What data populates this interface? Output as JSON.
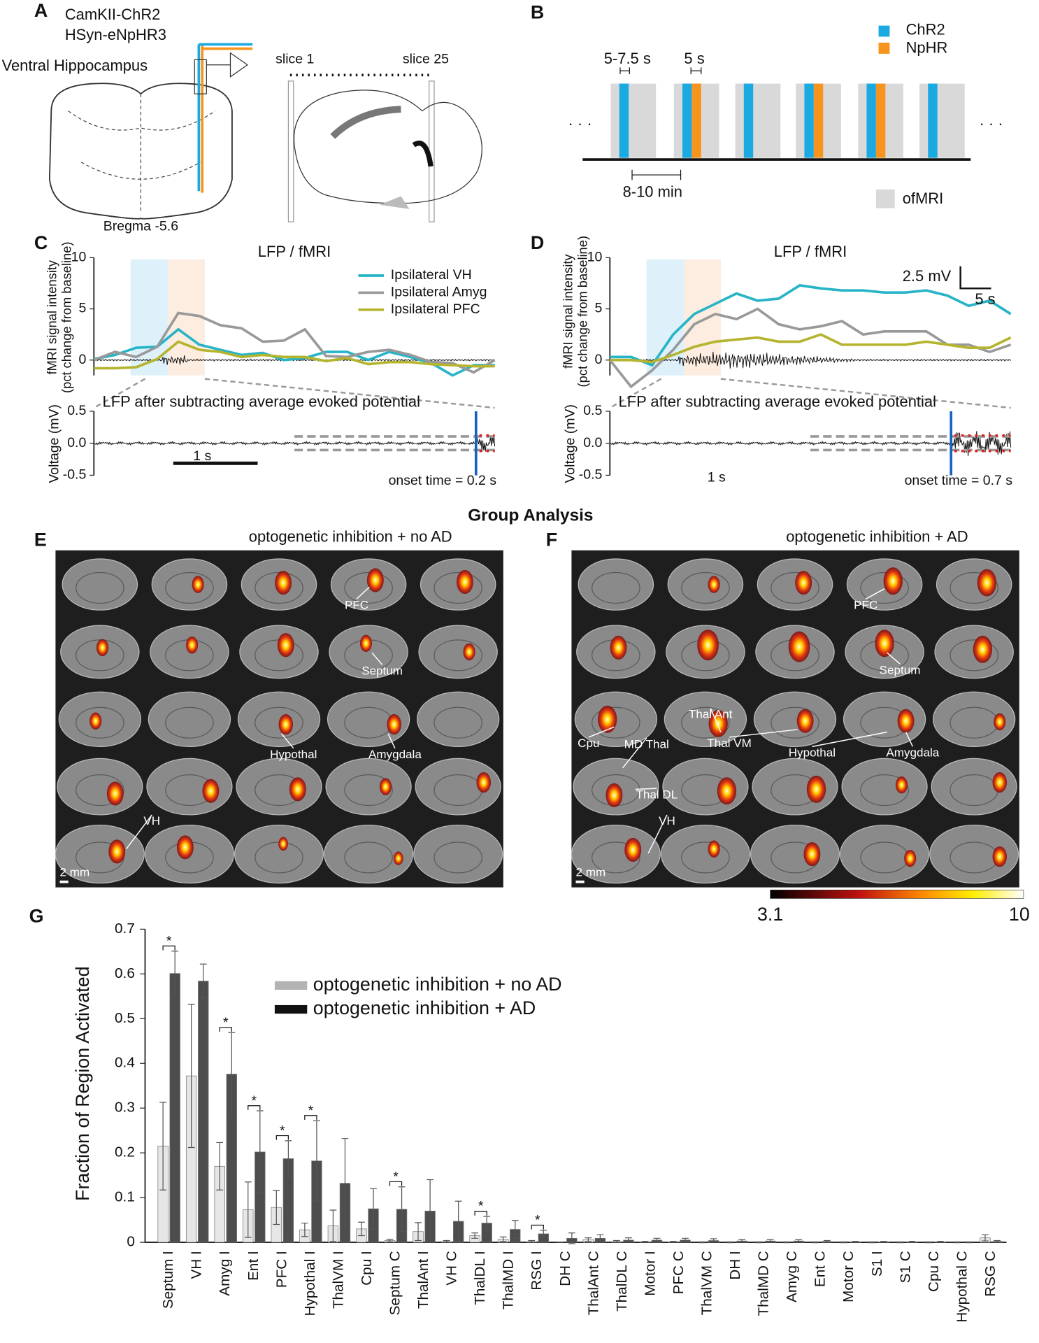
{
  "panel_a": {
    "label": "A",
    "lines": [
      "CamKII-ChR2",
      "HSyn-eNpHR3"
    ],
    "region": "Ventral Hippocampus",
    "bregma": "Bregma -5.6",
    "slice_start": "slice 1",
    "slice_end": "slice 25"
  },
  "panel_b": {
    "label": "B",
    "legend": [
      {
        "name": "ChR2",
        "color": "#1aa9e1"
      },
      {
        "name": "NpHR",
        "color": "#f7941d"
      },
      {
        "name": "ofMRI",
        "color": "#d9d9d9"
      }
    ],
    "stim_duration": "5-7.5 s",
    "inhib_duration": "5 s",
    "interval": "8-10 min",
    "ellipsis": "· · ·"
  },
  "group_title": "Group Analysis",
  "panel_e": {
    "label": "E",
    "title": "optogenetic inhibition + no AD",
    "annotations": [
      "PFC",
      "Septum",
      "Hypothal",
      "Amygdala",
      "VH"
    ],
    "scale": "2 mm"
  },
  "panel_f": {
    "label": "F",
    "title": "optogenetic inhibition + AD",
    "annotations": [
      "PFC",
      "Septum",
      "Thal Ant",
      "Cpu",
      "MD Thal",
      "Thal VM",
      "Hypothal",
      "Amygdala",
      "Thal DL",
      "VH"
    ],
    "scale": "2 mm"
  },
  "colorbar": {
    "min": 3.1,
    "max": 10
  },
  "chart_data": [
    {
      "type": "line",
      "panel": "C",
      "title": "LFP / fMRI",
      "y_label": [
        "fMRI signal intensity",
        "(pct change from baseline)"
      ],
      "ylim": [
        -1.5,
        10
      ],
      "yticks": [
        0,
        5,
        10
      ],
      "series": [
        {
          "name": "Ipsilateral VH",
          "color": "#27b4c6",
          "values": [
            0.1,
            0.5,
            1.2,
            1.3,
            3,
            1.5,
            1,
            0.5,
            0.7,
            0,
            0.2,
            0.8,
            0.8,
            0,
            0.8,
            0.3,
            -0.3,
            -1.5,
            -0.5,
            -0.5
          ]
        },
        {
          "name": "Ipsilateral Amyg",
          "color": "#999999",
          "values": [
            0,
            0.8,
            0.3,
            1.3,
            4.6,
            4.3,
            3.4,
            3.1,
            1.8,
            1.9,
            3,
            0.4,
            0.3,
            0.8,
            1,
            0.5,
            -0.2,
            -0.3,
            -1.2,
            0
          ]
        },
        {
          "name": "Ipsilateral PFC",
          "color": "#b5b42f",
          "values": [
            -0.8,
            -0.8,
            -0.7,
            0.1,
            1.8,
            1,
            0.8,
            0.3,
            0.5,
            0.3,
            0.3,
            -0.1,
            0.2,
            -0.4,
            -0.2,
            -0.2,
            -0.4,
            -0.5,
            -0.6,
            -0.6
          ]
        }
      ],
      "lfp": {
        "title": "LFP after subtracting average evoked potential",
        "y_label": "Voltage (mV)",
        "ylim": [
          -0.5,
          0.5
        ],
        "yticks": [
          -0.5,
          {
            "value": 0,
            "label": "0.0"
          },
          0.5
        ],
        "scale_bar": "1 s",
        "onset": "onset time = 0.2 s"
      }
    },
    {
      "type": "line",
      "panel": "D",
      "title": "LFP / fMRI",
      "y_label": [
        "fMRI signal intensity",
        "(pct change from baseline)"
      ],
      "ylim": [
        -1.5,
        10
      ],
      "yticks": [
        0,
        5,
        10
      ],
      "scale_bar_v": "2.5 mV",
      "scale_bar_h": "5 s",
      "series": [
        {
          "name": "Ipsilateral VH",
          "color": "#27b4c6",
          "values": [
            0.3,
            0.3,
            -0.5,
            2.5,
            4.5,
            5.5,
            6.5,
            5.8,
            6,
            7.3,
            7,
            6.8,
            6.8,
            6.6,
            6.6,
            6.8,
            6.3,
            5.3,
            5.8,
            4.5
          ]
        },
        {
          "name": "Ipsilateral Amyg",
          "color": "#999999",
          "values": [
            0,
            -2.6,
            -1,
            1,
            3.5,
            4.5,
            4,
            5,
            3.5,
            3,
            3.3,
            3.8,
            2.5,
            2.8,
            2.8,
            2.8,
            1.5,
            1.5,
            0.8,
            1.5
          ]
        },
        {
          "name": "Ipsilateral PFC",
          "color": "#b5b42f",
          "values": [
            0,
            0,
            -0.2,
            0.5,
            1.3,
            1.8,
            2,
            2.2,
            1.8,
            1.8,
            2.5,
            1.5,
            1.5,
            1.5,
            1.5,
            1.8,
            1.5,
            1.2,
            1.2,
            2.2
          ]
        }
      ],
      "lfp": {
        "title": "LFP after subtracting average evoked potential",
        "y_label": "Voltage (mV)",
        "ylim": [
          -0.5,
          0.5
        ],
        "yticks": [
          -0.5,
          {
            "value": 0,
            "label": "0.0"
          },
          0.5
        ],
        "scale_bar": "1 s",
        "onset": "onset time = 0.7 s"
      }
    },
    {
      "type": "bar",
      "panel": "G",
      "y_label": "Fraction of Region Activated",
      "ylim": [
        0,
        0.7
      ],
      "yticks": [
        0,
        0.1,
        0.2,
        0.3,
        0.4,
        0.5,
        0.6,
        0.7
      ],
      "categories": [
        "Septum I",
        "VH I",
        "Amyg I",
        "Ent I",
        "PFC I",
        "Hypothal I",
        "ThalVM I",
        "Cpu I",
        "Septum C",
        "ThalAnt I",
        "VH C",
        "ThalDL I",
        "ThalMD I",
        "RSG I",
        "DH C",
        "ThalAnt C",
        "ThalDL C",
        "Motor I",
        "PFC C",
        "ThalVM C",
        "DH I",
        "ThalMD C",
        "Amyg C",
        "Ent C",
        "Motor C",
        "S1 I",
        "S1 C",
        "Cpu C",
        "Hypothal C",
        "RSG C"
      ],
      "series": [
        {
          "name": "optogenetic inhibition + no AD",
          "color": "#e6e6e6",
          "legend_color": "#b3b3b3",
          "values": [
            0.215,
            0.372,
            0.17,
            0.073,
            0.078,
            0.028,
            0.037,
            0.03,
            0.004,
            0.024,
            0.002,
            0.015,
            0.007,
            0.002,
            0,
            0.006,
            0.002,
            0.001,
            0.001,
            0,
            0,
            0,
            0,
            0,
            0,
            0,
            0,
            0,
            0,
            0.01
          ],
          "errors": [
            0.098,
            0.16,
            0.053,
            0.062,
            0.038,
            0.015,
            0.035,
            0.015,
            0.003,
            0.02,
            0.002,
            0.006,
            0.005,
            0.002,
            0,
            0.004,
            0.002,
            0.001,
            0.001,
            0.001,
            0.001,
            0.001,
            0.001,
            0.001,
            0.001,
            0.001,
            0.001,
            0.001,
            0.001,
            0.007
          ]
        },
        {
          "name": "optogenetic inhibition + AD",
          "color": "#4d4d4d",
          "legend_color": "#111111",
          "values": [
            0.601,
            0.584,
            0.376,
            0.202,
            0.187,
            0.182,
            0.132,
            0.075,
            0.074,
            0.07,
            0.047,
            0.043,
            0.029,
            0.019,
            0.009,
            0.009,
            0.005,
            0.005,
            0.005,
            0.004,
            0.003,
            0.003,
            0.003,
            0.002,
            0.001,
            0.001,
            0.001,
            0.001,
            0,
            0.002
          ],
          "errors": [
            0.05,
            0.038,
            0.093,
            0.092,
            0.04,
            0.09,
            0.1,
            0.045,
            0.05,
            0.07,
            0.045,
            0.015,
            0.02,
            0.008,
            0.012,
            0.008,
            0.005,
            0.004,
            0.004,
            0.004,
            0.003,
            0.003,
            0.003,
            0.002,
            0.001,
            0.001,
            0.001,
            0.001,
            0.001,
            0.002
          ]
        }
      ],
      "significance_label": "*",
      "significant": [
        true,
        false,
        true,
        true,
        true,
        true,
        false,
        false,
        true,
        false,
        false,
        true,
        false,
        true,
        false,
        false,
        false,
        false,
        false,
        false,
        false,
        false,
        false,
        false,
        false,
        false,
        false,
        false,
        false,
        false
      ]
    }
  ]
}
